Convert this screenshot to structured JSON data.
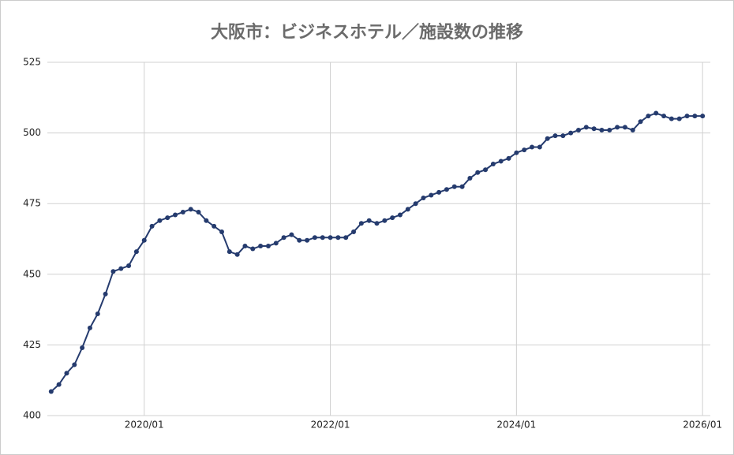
{
  "chart_data": {
    "type": "line",
    "title": "大阪市：ビジネスホテル／施設数の推移",
    "x": [
      "2019/01",
      "2019/02",
      "2019/03",
      "2019/04",
      "2019/05",
      "2019/06",
      "2019/07",
      "2019/08",
      "2019/09",
      "2019/10",
      "2019/11",
      "2019/12",
      "2020/01",
      "2020/02",
      "2020/03",
      "2020/04",
      "2020/05",
      "2020/06",
      "2020/07",
      "2020/08",
      "2020/09",
      "2020/10",
      "2020/11",
      "2020/12",
      "2021/01",
      "2021/02",
      "2021/03",
      "2021/04",
      "2021/05",
      "2021/06",
      "2021/07",
      "2021/08",
      "2021/09",
      "2021/10",
      "2021/11",
      "2021/12",
      "2022/01",
      "2022/02",
      "2022/03",
      "2022/04",
      "2022/05",
      "2022/06",
      "2022/07",
      "2022/08",
      "2022/09",
      "2022/10",
      "2022/11",
      "2022/12",
      "2023/01",
      "2023/02",
      "2023/03",
      "2023/04",
      "2023/05",
      "2023/06",
      "2023/07",
      "2023/08",
      "2023/09",
      "2023/10",
      "2023/11",
      "2023/12",
      "2024/01",
      "2024/02",
      "2024/03",
      "2024/04",
      "2024/05",
      "2024/06",
      "2024/07",
      "2024/08",
      "2024/09",
      "2024/10",
      "2024/11",
      "2024/12",
      "2025/01",
      "2025/02",
      "2025/03",
      "2025/04",
      "2025/05",
      "2025/06",
      "2025/07",
      "2025/08",
      "2025/09",
      "2025/10",
      "2025/11",
      "2025/12",
      "2026/01"
    ],
    "series": [
      {
        "name": "施設数",
        "color": "#253b6e",
        "values": [
          408.5,
          411,
          415,
          418,
          424,
          431,
          436,
          443,
          451,
          452,
          453,
          458,
          462,
          467,
          469,
          470,
          471,
          472,
          473,
          472,
          469,
          467,
          465,
          458,
          457,
          460,
          459,
          460,
          460,
          461,
          463,
          464,
          462,
          462,
          463,
          463,
          463,
          463,
          463,
          465,
          468,
          469,
          468,
          469,
          470,
          471,
          473,
          475,
          477,
          478,
          479,
          480,
          481,
          481,
          484,
          486,
          487,
          489,
          490,
          491,
          493,
          494,
          495,
          495,
          498,
          499,
          499,
          500,
          501,
          502,
          501.5,
          501,
          501,
          502,
          502,
          501,
          504,
          506,
          507,
          506,
          505,
          505,
          506,
          506,
          506
        ]
      }
    ],
    "xlim": [
      "2018/12",
      "2026/02"
    ],
    "xticks": [
      "2020/01",
      "2022/01",
      "2024/01",
      "2026/01"
    ],
    "ylim": [
      400,
      525
    ],
    "yticks": [
      400,
      425,
      450,
      475,
      500,
      525
    ],
    "grid": true
  }
}
